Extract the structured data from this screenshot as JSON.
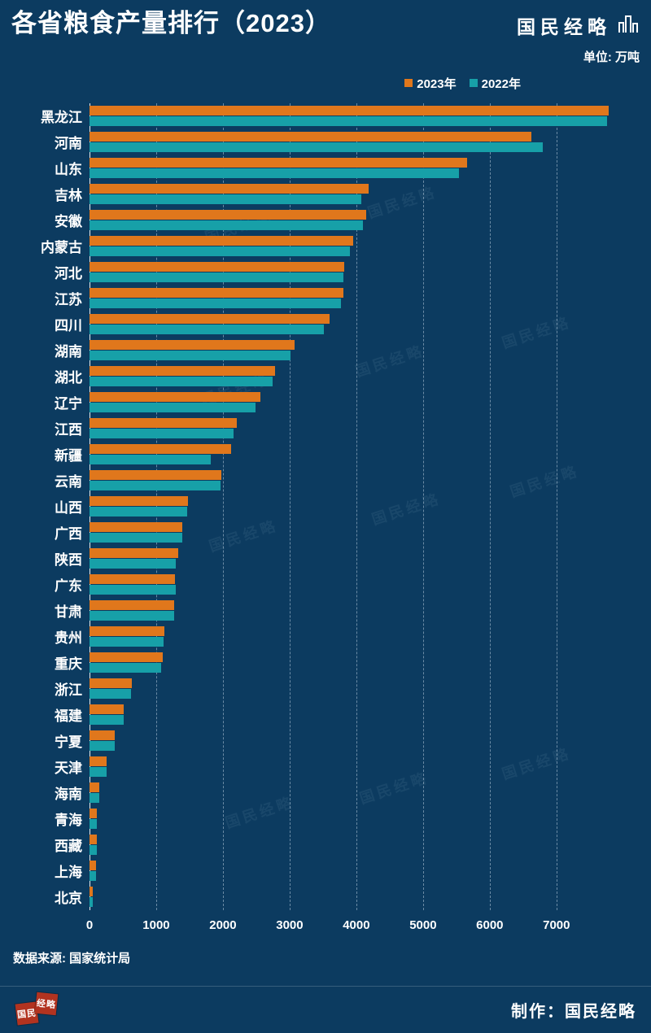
{
  "header": {
    "title": "各省粮食产量排行（2023）",
    "brand": "国民经略"
  },
  "unit_label": "单位: 万吨",
  "legend": [
    {
      "label": "2023年",
      "color": "#e0771c"
    },
    {
      "label": "2022年",
      "color": "#17a0a8"
    }
  ],
  "chart_data": {
    "type": "bar",
    "orientation": "horizontal",
    "title": "各省粮食产量排行（2023）",
    "unit": "万吨",
    "categories": [
      "黑龙江",
      "河南",
      "山东",
      "吉林",
      "安徽",
      "内蒙古",
      "河北",
      "江苏",
      "四川",
      "湖南",
      "湖北",
      "辽宁",
      "江西",
      "新疆",
      "云南",
      "山西",
      "广西",
      "陕西",
      "广东",
      "甘肃",
      "贵州",
      "重庆",
      "浙江",
      "福建",
      "宁夏",
      "天津",
      "海南",
      "青海",
      "西藏",
      "上海",
      "北京"
    ],
    "series": [
      {
        "name": "2023年",
        "color": "#e0771c",
        "values": [
          7788,
          6624,
          5655,
          4186,
          4151,
          3958,
          3814,
          3806,
          3594,
          3068,
          2787,
          2563,
          2210,
          2119,
          1974,
          1478,
          1395,
          1324,
          1285,
          1273,
          1120,
          1095,
          640,
          508,
          377,
          256,
          146,
          109,
          108,
          96,
          46
        ]
      },
      {
        "name": "2022年",
        "color": "#17a0a8",
        "values": [
          7763,
          6789,
          5543,
          4080,
          4100,
          3901,
          3800,
          3769,
          3511,
          3018,
          2741,
          2485,
          2157,
          1813,
          1958,
          1464,
          1393,
          1298,
          1291,
          1265,
          1115,
          1073,
          621,
          507,
          376,
          255,
          145,
          107,
          107,
          96,
          45
        ]
      }
    ],
    "xticks": [
      0,
      1000,
      2000,
      3000,
      4000,
      5000,
      6000,
      7000
    ],
    "xlim": [
      0,
      8100
    ],
    "grid": true,
    "legend_position": "top-right"
  },
  "watermark": "国民经略",
  "footer": {
    "source": "数据来源: 国家统计局",
    "credit": "制作：国民经略",
    "seal": [
      "国民",
      "经略"
    ]
  }
}
